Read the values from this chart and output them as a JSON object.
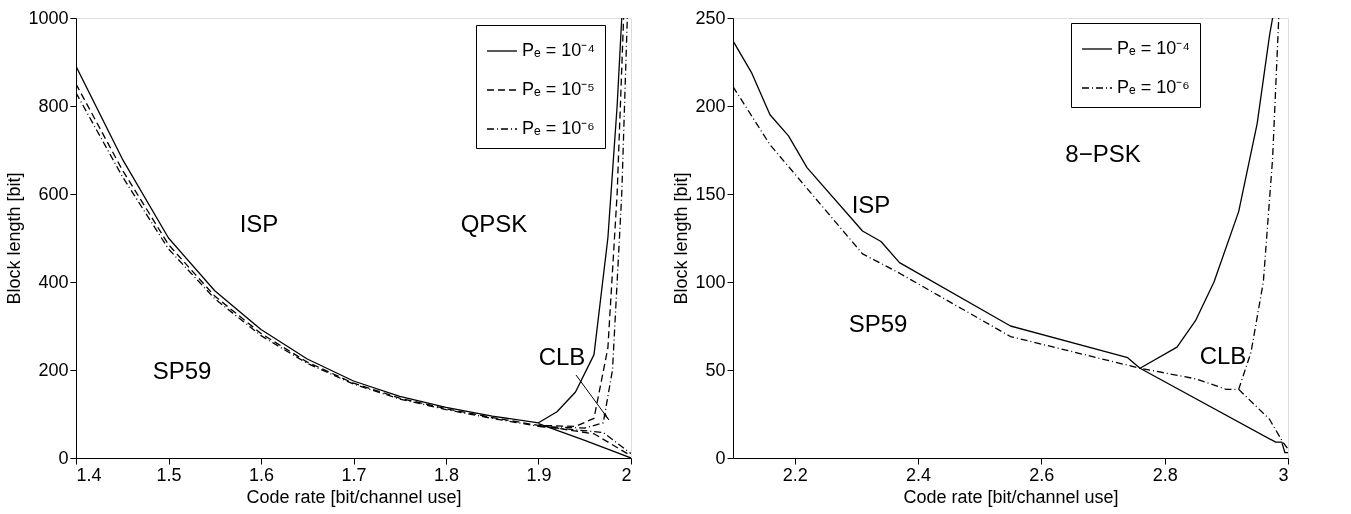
{
  "chart_data": [
    {
      "type": "line",
      "xlabel": "Code rate [bit/channel use]",
      "ylabel": "Block length [bit]",
      "xlim": [
        1.4,
        2.0
      ],
      "ylim": [
        0,
        1000
      ],
      "xticks": [
        1.4,
        1.5,
        1.6,
        1.7,
        1.8,
        1.9,
        2
      ],
      "yticks": [
        0,
        200,
        400,
        600,
        800,
        1000
      ],
      "grid": false,
      "legend": "top right",
      "marker": "none",
      "series": [
        {
          "name": "Pₑ = 10⁻⁴",
          "color": "#000000",
          "line_style": "solid",
          "x": [
            1.4,
            1.45,
            1.5,
            1.55,
            1.6,
            1.65,
            1.7,
            1.75,
            1.8,
            1.85,
            1.9,
            1.92,
            1.94,
            1.96,
            1.975,
            1.985,
            1.99
          ],
          "values": [
            890,
            680,
            500,
            380,
            292,
            225,
            175,
            140,
            115,
            95,
            80,
            105,
            150,
            235,
            500,
            800,
            1000
          ]
        },
        {
          "name": "Pₑ = 10⁻⁵",
          "color": "#000000",
          "line_style": "dashed",
          "x": [
            1.4,
            1.45,
            1.5,
            1.55,
            1.6,
            1.65,
            1.7,
            1.75,
            1.8,
            1.85,
            1.9,
            1.94,
            1.96,
            1.975,
            1.985,
            1.992
          ],
          "values": [
            850,
            655,
            485,
            368,
            283,
            218,
            170,
            136,
            112,
            92,
            74,
            72,
            90,
            250,
            600,
            1000
          ]
        },
        {
          "name": "Pₑ = 10⁻⁶",
          "color": "#000000",
          "line_style": "dashdot",
          "x": [
            1.4,
            1.45,
            1.5,
            1.55,
            1.6,
            1.65,
            1.7,
            1.75,
            1.8,
            1.85,
            1.9,
            1.95,
            1.97,
            1.98,
            1.99,
            1.996
          ],
          "values": [
            830,
            640,
            475,
            362,
            278,
            215,
            168,
            134,
            110,
            90,
            72,
            68,
            80,
            200,
            600,
            1000
          ]
        },
        {
          "color": "#000000",
          "line_style": "solid",
          "x": [
            1.9,
            1.95,
            2.0
          ],
          "values": [
            78,
            40,
            0
          ]
        },
        {
          "color": "#000000",
          "line_style": "dashed",
          "x": [
            1.9,
            1.96,
            2.0
          ],
          "values": [
            74,
            55,
            5
          ]
        },
        {
          "color": "#000000",
          "line_style": "dashdot",
          "x": [
            1.9,
            1.97,
            2.0
          ],
          "values": [
            72,
            58,
            10
          ]
        }
      ],
      "annotations": [
        "ISP",
        "SP59",
        "QPSK",
        "CLB"
      ]
    },
    {
      "type": "line",
      "xlabel": "Code rate [bit/channel use]",
      "ylabel": "Block length [bit]",
      "xlim": [
        2.1,
        3.0
      ],
      "ylim": [
        0,
        250
      ],
      "xticks": [
        2.2,
        2.4,
        2.6,
        2.8,
        3
      ],
      "yticks": [
        0,
        50,
        100,
        150,
        200,
        250
      ],
      "grid": false,
      "legend": "top right",
      "marker": "none",
      "series": [
        {
          "name": "Pₑ = 10⁻⁴",
          "color": "#000000",
          "line_style": "solid",
          "x": [
            2.1,
            2.13,
            2.16,
            2.19,
            2.22,
            2.31,
            2.34,
            2.37,
            2.55,
            2.74,
            2.76,
            2.82,
            2.85,
            2.88,
            2.92,
            2.95,
            2.97,
            2.975
          ],
          "values": [
            237,
            219,
            195,
            183,
            165,
            129,
            123,
            111,
            75,
            57,
            51,
            63,
            78,
            100,
            140,
            190,
            240,
            250
          ]
        },
        {
          "name": "Pₑ = 10⁻⁶",
          "color": "#000000",
          "line_style": "dashdot",
          "x": [
            2.1,
            2.16,
            2.31,
            2.37,
            2.55,
            2.76,
            2.85,
            2.9,
            2.92,
            2.94,
            2.96,
            2.975,
            2.985
          ],
          "values": [
            211,
            178,
            116,
            105,
            69,
            51,
            45,
            39,
            39,
            60,
            100,
            170,
            250
          ]
        },
        {
          "color": "#000000",
          "line_style": "solid",
          "x": [
            2.76,
            2.98,
            2.99,
            2.995,
            3.0
          ],
          "values": [
            51,
            9,
            9,
            3,
            3
          ]
        },
        {
          "color": "#000000",
          "line_style": "dashdot",
          "x": [
            2.92,
            2.97,
            2.98,
            2.99,
            3.0
          ],
          "values": [
            39,
            22,
            16,
            10,
            5
          ]
        }
      ],
      "annotations": [
        "ISP",
        "SP59",
        "8−PSK",
        "CLB"
      ]
    }
  ]
}
